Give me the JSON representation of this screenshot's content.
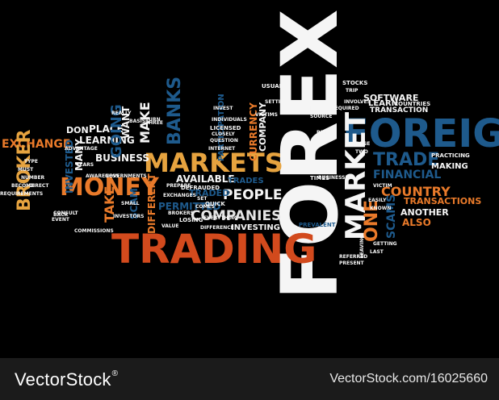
{
  "words": {
    "forex": "FOREX",
    "foreign": "FOREIGN",
    "trading": "TRADING",
    "market": "MARKET",
    "markets": "MARKETS",
    "money": "MONEY",
    "trade": "TRADE",
    "exchange": "EXCHANGE",
    "broker": "BROKER",
    "business": "BUSINESS",
    "companies": "COMPANIES",
    "people": "PEOPLE",
    "country": "COUNTRY",
    "financial": "FINANCIAL",
    "transactions": "TRANSACTIONS",
    "another": "ANOTHER",
    "scams": "SCAMS",
    "also": "ALSO",
    "available": "AVAILABLE",
    "permitted": "PERMITTED",
    "different": "DIFFERENT",
    "traded": "TRADED",
    "trades": "TRADES",
    "investing": "INVESTING",
    "software": "SOFTWARE",
    "transaction": "TRANSACTION",
    "learn": "LEARN",
    "learning": "LEARNING",
    "place": "PLACE",
    "going": "GOING",
    "banks": "BANKS",
    "make": "MAKE",
    "want": "WANT",
    "take": "TAKE",
    "scam": "SCAM",
    "one": "ONE",
    "currency": "CURRENCY",
    "company": "COMPANY",
    "making": "MAKING",
    "practicing": "PRACTICING",
    "countries": "COUNTRIES",
    "stocks": "STOCKS",
    "don": "DON",
    "invested": "INVESTED",
    "many": "MANY",
    "participation": "PARTICIPATION",
    "defrauded": "DEFRAUDED",
    "losing": "LOSING",
    "everything": "EVERYTHING",
    "brokers": "BROKERS",
    "investors": "INVESTORS",
    "difference": "DIFFERENCE",
    "quick": "QUICK",
    "internet": "INTERNET",
    "licensed": "LICENSED",
    "question": "QUESTION",
    "closely": "CLOSELY",
    "individuals": "INDIVIDUALS",
    "victims": "VICTIMS",
    "setting": "SETTING",
    "located": "LOCATED",
    "required": "REQUIRED",
    "involves": "INVOLVES",
    "easily": "EASILY",
    "known": "KNOWN",
    "prevalent": "PREVALENT",
    "getting": "GETTING",
    "last": "LAST",
    "present": "PRESENT",
    "referred": "REFERRED",
    "leaving": "LEAVING",
    "victim": "VICTIM",
    "times": "TIMES",
    "businesses": "BUSINESSES",
    "two": "TWO",
    "rage": "RAGE",
    "paid": "PAID",
    "source": "SOURCE",
    "usual": "USUAL",
    "governments": "GOVERNMENTS",
    "awareness": "AWARENESS",
    "advantage": "ADVANTAGE",
    "commissions": "COMMISSIONS",
    "requirements": "REQUIREMENTS",
    "become": "BECOME",
    "must": "MUST",
    "direct": "DIRECT",
    "number": "NUMBER",
    "consult": "CONSULT",
    "back": "BACK",
    "event": "EVENT",
    "years": "YEARS",
    "basis": "BASIS",
    "really": "REALLY",
    "three": "THREE",
    "turn": "TURN",
    "invest": "INVEST",
    "exchanges": "EXCHANGES",
    "small": "SMALL",
    "prepare": "PREPARE",
    "value": "VALUE",
    "comes": "COMES",
    "set": "SET",
    "trip": "TRIP",
    "type": "TYPE"
  },
  "footer": {
    "logo": "VectorStock",
    "reg": "®",
    "url": "VectorStock.com/16025660"
  }
}
